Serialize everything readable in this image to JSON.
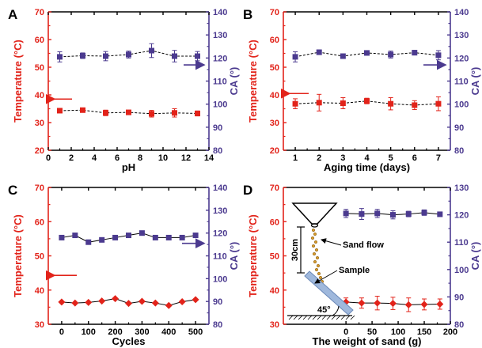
{
  "chart_data": [
    {
      "panel_label": "A",
      "type": "line",
      "xlabel": "pH",
      "ylabel_left": "Temperature (°C)",
      "ylabel_right": "CA (°)",
      "xlim": [
        0,
        14
      ],
      "xticks": [
        0,
        2,
        4,
        6,
        8,
        10,
        12,
        14
      ],
      "ylim_left": [
        20,
        70
      ],
      "yticks_left": [
        20,
        30,
        40,
        50,
        60,
        70
      ],
      "ylim_right": [
        80,
        140
      ],
      "yticks_right": [
        80,
        90,
        100,
        110,
        120,
        130,
        140
      ],
      "series": [
        {
          "axis": "left",
          "color": "#e2231a",
          "marker": "square",
          "line": "dashed",
          "x": [
            1,
            3,
            5,
            7,
            9,
            11,
            13
          ],
          "y": [
            34.3,
            34.5,
            33.5,
            33.7,
            33.2,
            33.5,
            33.3
          ],
          "err": [
            0.6,
            0.4,
            1.0,
            0.6,
            1.2,
            1.5,
            0.9
          ]
        },
        {
          "axis": "right",
          "color": "#4b3a8f",
          "marker": "square",
          "line": "dashed",
          "x": [
            1,
            3,
            5,
            7,
            9,
            11,
            13
          ],
          "y": [
            120.5,
            121,
            120.8,
            121.5,
            123.2,
            120.8,
            120.8
          ],
          "err": [
            2.2,
            1.2,
            2.0,
            1.5,
            3.0,
            2.5,
            2.0
          ]
        }
      ],
      "arrows": [
        {
          "direction": "left",
          "color": "#e2231a"
        },
        {
          "direction": "right",
          "color": "#4b3a8f"
        }
      ]
    },
    {
      "panel_label": "B",
      "type": "line",
      "xlabel": "Aging time (days)",
      "ylabel_left": "Temperature (°C)",
      "ylabel_right": "CA (°)",
      "xlim": [
        0.5,
        7.5
      ],
      "xticks": [
        1,
        2,
        3,
        4,
        5,
        6,
        7
      ],
      "ylim_left": [
        20,
        70
      ],
      "yticks_left": [
        20,
        30,
        40,
        50,
        60,
        70
      ],
      "ylim_right": [
        80,
        140
      ],
      "yticks_right": [
        80,
        90,
        100,
        110,
        120,
        130,
        140
      ],
      "series": [
        {
          "axis": "left",
          "color": "#e2231a",
          "marker": "square",
          "line": "dashed",
          "x": [
            1,
            2,
            3,
            4,
            5,
            6,
            7
          ],
          "y": [
            36.8,
            37.2,
            37.0,
            37.8,
            36.8,
            36.3,
            36.8
          ],
          "err": [
            1.8,
            3.0,
            2.0,
            1.0,
            2.2,
            1.6,
            2.5
          ]
        },
        {
          "axis": "right",
          "color": "#4b3a8f",
          "marker": "square",
          "line": "dashed",
          "x": [
            1,
            2,
            3,
            4,
            5,
            6,
            7
          ],
          "y": [
            120.5,
            122.5,
            120.8,
            122.2,
            121.5,
            122.3,
            121.2
          ],
          "err": [
            2.2,
            1.0,
            1.0,
            1.0,
            1.5,
            1.0,
            2.0
          ]
        }
      ],
      "arrows": [
        {
          "direction": "left",
          "color": "#e2231a"
        },
        {
          "direction": "right",
          "color": "#4b3a8f"
        }
      ]
    },
    {
      "panel_label": "C",
      "type": "line",
      "xlabel": "Cycles",
      "ylabel_left": "Temperature (°C)",
      "ylabel_right": "CA (°)",
      "xlim": [
        -50,
        550
      ],
      "xticks": [
        0,
        100,
        200,
        300,
        400,
        500
      ],
      "ylim_left": [
        30,
        70
      ],
      "yticks_left": [
        30,
        40,
        50,
        60,
        70
      ],
      "ylim_right": [
        80,
        140
      ],
      "yticks_right": [
        80,
        90,
        100,
        110,
        120,
        130,
        140
      ],
      "series": [
        {
          "axis": "left",
          "color": "#e2231a",
          "marker": "diamond",
          "line": "solid",
          "x": [
            0,
            50,
            100,
            150,
            200,
            250,
            300,
            350,
            400,
            450,
            500
          ],
          "y": [
            36.5,
            36.2,
            36.4,
            36.8,
            37.5,
            36.1,
            36.7,
            36.2,
            35.5,
            36.6,
            37.2
          ]
        },
        {
          "axis": "right",
          "color": "#4b3a8f",
          "marker": "square",
          "line": "solid",
          "x": [
            0,
            50,
            100,
            150,
            200,
            250,
            300,
            350,
            400,
            450,
            500
          ],
          "y": [
            118,
            119,
            116,
            117,
            118,
            119,
            120,
            118,
            118,
            118,
            119
          ]
        }
      ],
      "arrows": [
        {
          "direction": "left",
          "color": "#e2231a"
        },
        {
          "direction": "right",
          "color": "#4b3a8f"
        }
      ]
    },
    {
      "panel_label": "D",
      "type": "line",
      "xlabel": "The weight of sand (g)",
      "ylabel_left": "Temperature (°C)",
      "ylabel_right": "CA (°)",
      "xlim": [
        -120,
        200
      ],
      "xticks": [
        0,
        50,
        100,
        150,
        200
      ],
      "ylim_left": [
        30,
        70
      ],
      "yticks_left": [
        30,
        40,
        50,
        60,
        70
      ],
      "ylim_right": [
        80,
        130
      ],
      "yticks_right": [
        80,
        90,
        100,
        110,
        120,
        130
      ],
      "series": [
        {
          "axis": "left",
          "color": "#e2231a",
          "marker": "diamond",
          "line": "solid",
          "x": [
            0,
            30,
            60,
            90,
            120,
            150,
            180
          ],
          "y": [
            36.5,
            36.2,
            36.2,
            36.1,
            35.7,
            35.8,
            35.9
          ],
          "err": [
            1.2,
            1.5,
            2.0,
            1.8,
            2.0,
            1.6,
            1.5
          ]
        },
        {
          "axis": "right",
          "color": "#4b3a8f",
          "marker": "square",
          "line": "solid",
          "x": [
            0,
            30,
            60,
            90,
            120,
            150,
            180
          ],
          "y": [
            120.5,
            120.3,
            120.5,
            120.0,
            120.3,
            120.8,
            120.2
          ],
          "err": [
            1.5,
            2.0,
            1.5,
            1.5,
            1.0,
            1.0,
            0.5
          ]
        }
      ],
      "inset_labels": {
        "height": "30cm",
        "sand_flow": "Sand flow",
        "sample": "Sample",
        "angle": "45°"
      }
    }
  ]
}
